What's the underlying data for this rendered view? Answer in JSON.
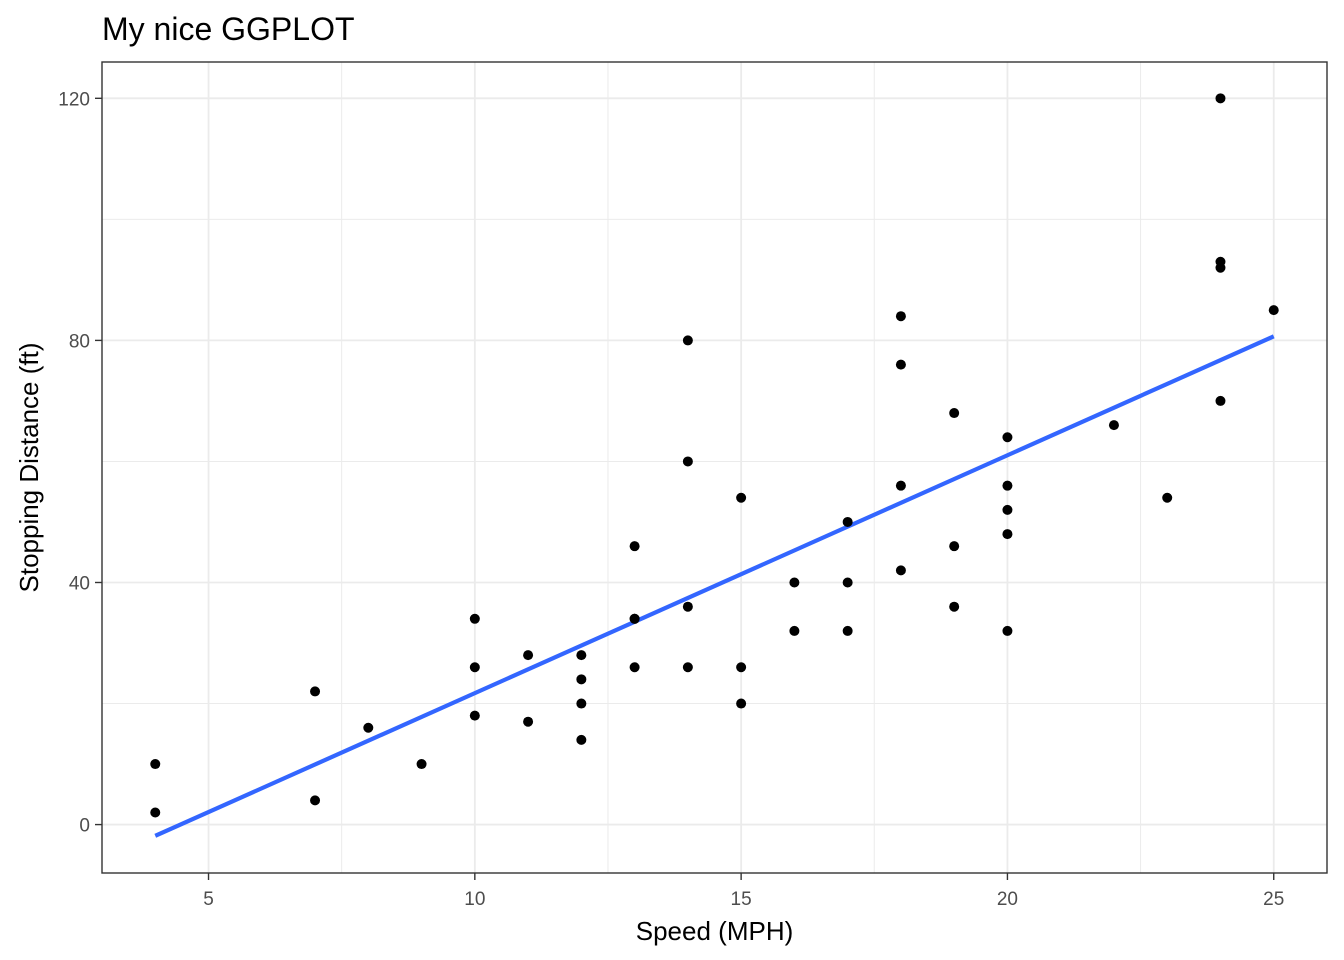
{
  "chart_data": {
    "type": "scatter",
    "title": "My nice GGPLOT",
    "xlabel": "Speed (MPH)",
    "ylabel": "Stopping Distance (ft)",
    "xlim": [
      3,
      26
    ],
    "ylim": [
      -8,
      126
    ],
    "x_ticks": [
      5,
      10,
      15,
      20,
      25
    ],
    "y_ticks": [
      0,
      40,
      80,
      120
    ],
    "x_ticks_labels": [
      "5",
      "10",
      "15",
      "20",
      "25"
    ],
    "y_ticks_labels": [
      "0",
      "40",
      "80",
      "120"
    ],
    "x_minor_ticks": [
      7.5,
      12.5,
      17.5,
      22.5
    ],
    "y_minor_ticks": [
      20,
      60,
      100
    ],
    "grid": true,
    "points": [
      [
        4,
        2
      ],
      [
        4,
        10
      ],
      [
        7,
        4
      ],
      [
        7,
        22
      ],
      [
        8,
        16
      ],
      [
        9,
        10
      ],
      [
        10,
        18
      ],
      [
        10,
        26
      ],
      [
        10,
        34
      ],
      [
        11,
        17
      ],
      [
        11,
        28
      ],
      [
        12,
        14
      ],
      [
        12,
        20
      ],
      [
        12,
        24
      ],
      [
        12,
        28
      ],
      [
        13,
        26
      ],
      [
        13,
        34
      ],
      [
        13,
        34
      ],
      [
        13,
        46
      ],
      [
        14,
        26
      ],
      [
        14,
        36
      ],
      [
        14,
        60
      ],
      [
        14,
        80
      ],
      [
        15,
        20
      ],
      [
        15,
        26
      ],
      [
        15,
        54
      ],
      [
        16,
        32
      ],
      [
        16,
        40
      ],
      [
        17,
        32
      ],
      [
        17,
        40
      ],
      [
        17,
        50
      ],
      [
        18,
        42
      ],
      [
        18,
        56
      ],
      [
        18,
        76
      ],
      [
        18,
        84
      ],
      [
        19,
        36
      ],
      [
        19,
        46
      ],
      [
        19,
        68
      ],
      [
        20,
        32
      ],
      [
        20,
        48
      ],
      [
        20,
        52
      ],
      [
        20,
        56
      ],
      [
        20,
        64
      ],
      [
        22,
        66
      ],
      [
        23,
        54
      ],
      [
        24,
        70
      ],
      [
        24,
        92
      ],
      [
        24,
        93
      ],
      [
        24,
        120
      ],
      [
        25,
        85
      ]
    ],
    "trend_line": {
      "type": "linear",
      "x_start": 4,
      "x_end": 25,
      "intercept": -17.58,
      "slope": 3.93
    },
    "colors": {
      "points": "#000000",
      "trend": "#3366ff",
      "grid": "#ebebeb",
      "border": "#333333",
      "background": "#ffffff"
    }
  }
}
